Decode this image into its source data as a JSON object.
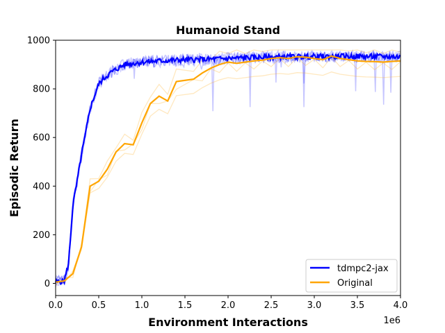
{
  "chart_data": {
    "type": "line",
    "title": "Humanoid Stand",
    "xlabel": "Environment Interactions",
    "ylabel": "Episodic Return",
    "x_multiplier_label": "1e6",
    "xlim": [
      0,
      4000000
    ],
    "ylim": [
      -50,
      1000
    ],
    "xticks": [
      0,
      500000,
      1000000,
      1500000,
      2000000,
      2500000,
      3000000,
      3500000,
      4000000
    ],
    "xtick_labels": [
      "0.0",
      "0.5",
      "1.0",
      "1.5",
      "2.0",
      "2.5",
      "3.0",
      "3.5",
      "4.0"
    ],
    "yticks": [
      0,
      200,
      400,
      600,
      800,
      1000
    ],
    "ytick_labels": [
      "0",
      "200",
      "400",
      "600",
      "800",
      "1000"
    ],
    "grid": false,
    "legend_position": "lower-right",
    "series": [
      {
        "name": "tdmpc2-jax",
        "color": "#0000ff",
        "x": [
          0,
          100000,
          150000,
          200000,
          250000,
          300000,
          350000,
          400000,
          450000,
          500000,
          550000,
          600000,
          650000,
          700000,
          750000,
          800000,
          900000,
          1000000,
          1200000,
          1400000,
          1600000,
          1800000,
          2000000,
          2200000,
          2400000,
          2600000,
          2800000,
          3000000,
          3200000,
          3400000,
          3600000,
          3800000,
          4000000
        ],
        "y": [
          5,
          10,
          80,
          320,
          420,
          530,
          620,
          720,
          770,
          820,
          840,
          855,
          870,
          880,
          890,
          900,
          905,
          910,
          915,
          918,
          920,
          922,
          925,
          928,
          930,
          932,
          932,
          933,
          933,
          934,
          933,
          933,
          932
        ]
      },
      {
        "name": "Original",
        "color": "#ffa500",
        "x": [
          0,
          100000,
          200000,
          300000,
          400000,
          500000,
          600000,
          700000,
          800000,
          900000,
          1000000,
          1100000,
          1200000,
          1300000,
          1400000,
          1600000,
          1700000,
          1800000,
          1900000,
          2000000,
          2100000,
          2200000,
          2300000,
          2400000,
          2500000,
          2600000,
          2700000,
          2800000,
          2900000,
          3000000,
          3100000,
          3200000,
          3300000,
          3400000,
          3500000,
          3600000,
          3700000,
          3800000,
          3900000,
          4000000
        ],
        "y": [
          5,
          10,
          40,
          150,
          400,
          420,
          470,
          540,
          575,
          570,
          660,
          740,
          770,
          750,
          830,
          840,
          865,
          885,
          900,
          910,
          905,
          910,
          915,
          918,
          925,
          928,
          925,
          932,
          930,
          925,
          920,
          935,
          925,
          920,
          915,
          913,
          912,
          910,
          913,
          915
        ]
      }
    ]
  }
}
